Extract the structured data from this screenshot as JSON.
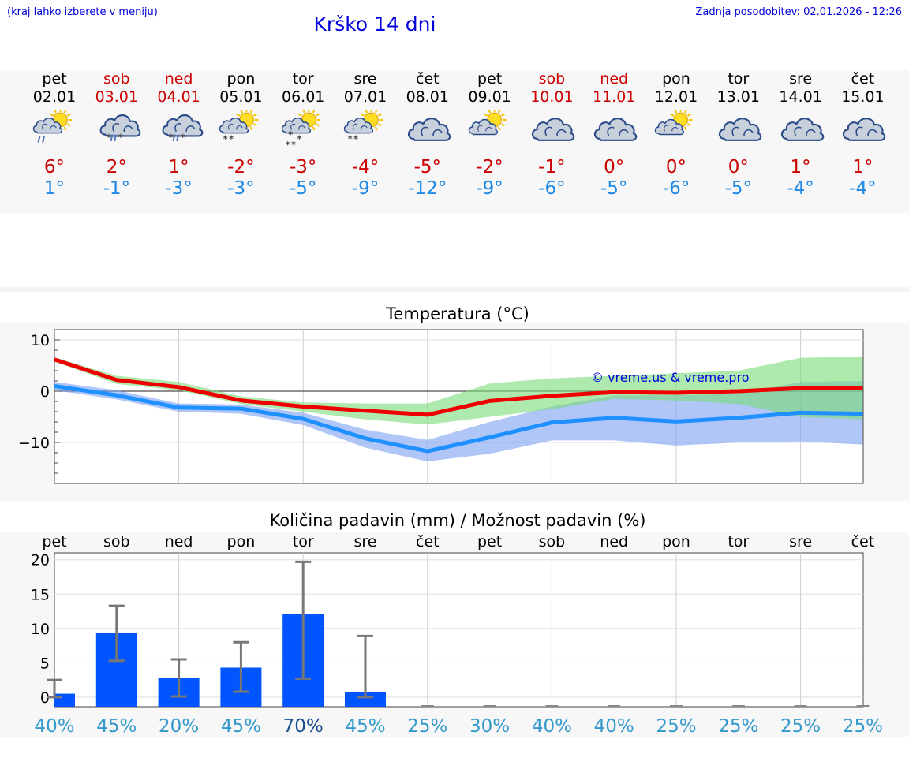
{
  "header": {
    "region_hint": "(kraj lahko izberete v meniju)",
    "title": "Krško 14 dni",
    "updated": "Zadnja posodobitev: 02.01.2026 - 12:26"
  },
  "colors": {
    "link_blue": "#0000dd",
    "weekend_red": "#cc0000",
    "tmax_red": "#ee0000",
    "tmin_blue": "#1e90ff",
    "band_green": "#78dc78",
    "band_blue": "#7aa0f0",
    "bar_blue": "#0055ff",
    "pct_normal": "#3399cc",
    "pct_high": "#1a4c8c"
  },
  "days": [
    {
      "name": "pet",
      "date": "02.01",
      "weekend": false,
      "icon": "sun-cloud-rain-icon",
      "tmax": "6°",
      "tmin": "1°"
    },
    {
      "name": "sob",
      "date": "03.01",
      "weekend": true,
      "icon": "cloud-sleet-icon",
      "tmax": "2°",
      "tmin": "-1°"
    },
    {
      "name": "ned",
      "date": "04.01",
      "weekend": true,
      "icon": "cloud-sleet-icon",
      "tmax": "1°",
      "tmin": "-3°"
    },
    {
      "name": "pon",
      "date": "05.01",
      "weekend": false,
      "icon": "sun-cloud-snow-icon",
      "tmax": "-2°",
      "tmin": "-3°"
    },
    {
      "name": "tor",
      "date": "06.01",
      "weekend": false,
      "icon": "sun-cloud-heavy-snow-icon",
      "tmax": "-3°",
      "tmin": "-5°"
    },
    {
      "name": "sre",
      "date": "07.01",
      "weekend": false,
      "icon": "sun-cloud-snow-icon",
      "tmax": "-4°",
      "tmin": "-9°"
    },
    {
      "name": "čet",
      "date": "08.01",
      "weekend": false,
      "icon": "cloudy-icon",
      "tmax": "-5°",
      "tmin": "-12°"
    },
    {
      "name": "pet",
      "date": "09.01",
      "weekend": false,
      "icon": "partly-cloudy-icon",
      "tmax": "-2°",
      "tmin": "-9°"
    },
    {
      "name": "sob",
      "date": "10.01",
      "weekend": true,
      "icon": "cloudy-icon",
      "tmax": "-1°",
      "tmin": "-6°"
    },
    {
      "name": "ned",
      "date": "11.01",
      "weekend": true,
      "icon": "cloudy-icon",
      "tmax": "0°",
      "tmin": "-5°"
    },
    {
      "name": "pon",
      "date": "12.01",
      "weekend": false,
      "icon": "partly-cloudy-icon",
      "tmax": "0°",
      "tmin": "-6°"
    },
    {
      "name": "tor",
      "date": "13.01",
      "weekend": false,
      "icon": "cloudy-icon",
      "tmax": "0°",
      "tmin": "-5°"
    },
    {
      "name": "sre",
      "date": "14.01",
      "weekend": false,
      "icon": "cloudy-icon",
      "tmax": "1°",
      "tmin": "-4°"
    },
    {
      "name": "čet",
      "date": "15.01",
      "weekend": false,
      "icon": "cloudy-icon",
      "tmax": "1°",
      "tmin": "-4°"
    }
  ],
  "chart_data": [
    {
      "type": "line",
      "title": "Temperatura (°C)",
      "watermark": "© vreme.us & vreme.pro",
      "x": [
        0,
        1,
        2,
        3,
        4,
        5,
        6,
        7,
        8,
        9,
        10,
        11,
        12,
        13
      ],
      "ylim": [
        -18,
        12
      ],
      "yticks": [
        10,
        0,
        -10
      ],
      "ytick_labels": [
        "10",
        "0",
        "−10"
      ],
      "series": [
        {
          "name": "tmax",
          "values": [
            6.2,
            2.2,
            0.8,
            -1.8,
            -3.0,
            -3.8,
            -4.6,
            -1.9,
            -0.9,
            -0.2,
            -0.3,
            0.0,
            0.6,
            0.6
          ],
          "band_hi": [
            6.6,
            3.0,
            1.8,
            -1.0,
            -2.2,
            -2.4,
            -2.4,
            1.5,
            2.5,
            3.0,
            3.5,
            4.0,
            6.5,
            6.8
          ],
          "band_lo": [
            5.8,
            1.4,
            0.2,
            -2.5,
            -4.0,
            -5.5,
            -6.5,
            -5.0,
            -3.5,
            -1.5,
            -1.8,
            -2.5,
            -5.0,
            -5.5
          ]
        },
        {
          "name": "tmin",
          "values": [
            1.0,
            -0.8,
            -3.2,
            -3.4,
            -5.4,
            -9.2,
            -11.7,
            -9.0,
            -6.1,
            -5.2,
            -5.9,
            -5.2,
            -4.2,
            -4.4
          ],
          "band_hi": [
            1.8,
            0.2,
            -2.4,
            -2.6,
            -4.2,
            -7.5,
            -9.5,
            -6.0,
            -3.0,
            -0.8,
            -0.8,
            -0.5,
            1.8,
            2.0
          ],
          "band_lo": [
            0.2,
            -1.6,
            -4.0,
            -4.4,
            -6.6,
            -11.0,
            -13.7,
            -12.2,
            -9.6,
            -9.6,
            -10.6,
            -10.0,
            -9.8,
            -10.4
          ]
        }
      ]
    },
    {
      "type": "bar",
      "title": "Količina padavin (mm) / Možnost padavin (%)",
      "categories": [
        "pet",
        "sob",
        "ned",
        "pon",
        "tor",
        "sre",
        "čet",
        "pet",
        "sob",
        "ned",
        "pon",
        "tor",
        "sre",
        "čet"
      ],
      "values": [
        0.5,
        9.3,
        2.8,
        4.3,
        12.1,
        0.7,
        0,
        0,
        0,
        0,
        0,
        0,
        0,
        0
      ],
      "err_lo": [
        0,
        5.3,
        0.1,
        0.8,
        2.7,
        0,
        0,
        0,
        0,
        0,
        0,
        0,
        0,
        0
      ],
      "err_hi": [
        2.5,
        13.3,
        5.5,
        8.0,
        19.7,
        8.9,
        0,
        0,
        0,
        0,
        0,
        0,
        0,
        0
      ],
      "probability": [
        "40%",
        "45%",
        "20%",
        "45%",
        "70%",
        "45%",
        "25%",
        "30%",
        "40%",
        "40%",
        "25%",
        "25%",
        "25%",
        "25%"
      ],
      "ylim": [
        -1.5,
        21
      ],
      "yticks": [
        20,
        15,
        10,
        5,
        0
      ],
      "ytick_labels": [
        "20",
        "15",
        "10",
        "5",
        "0"
      ]
    }
  ]
}
